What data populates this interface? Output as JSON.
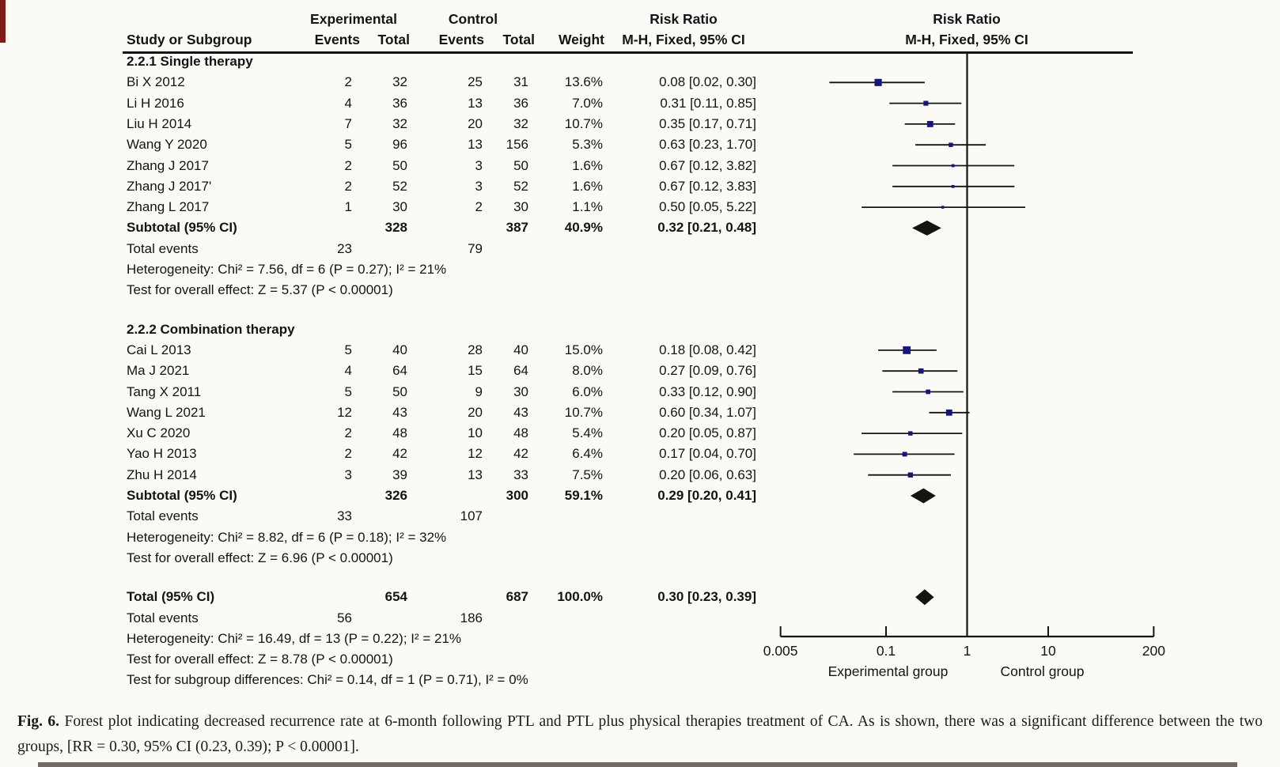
{
  "header": {
    "study_col": "Study or Subgroup",
    "experimental": "Experimental",
    "control": "Control",
    "events": "Events",
    "total": "Total",
    "weight": "Weight",
    "risk_ratio": "Risk Ratio",
    "method": "M-H, Fixed, 95% CI"
  },
  "colors": {
    "background": "#fbfaf6",
    "marker_blue": "#15157e",
    "line_black": "#141414",
    "artifact_red": "#7f1d14",
    "bottom_bar": "#5d4f49"
  },
  "caption": {
    "label": "Fig. 6.",
    "text": "Forest plot indicating decreased recurrence rate at 6-month following PTL and PTL plus physical therapies treatment of CA. As is shown, there was a significant difference between the two groups, [RR = 0.30, 95% CI (0.23, 0.39); P < 0.00001]."
  },
  "chart_data": {
    "type": "scatter",
    "variant": "forest-plot",
    "effect_measure": "Risk Ratio, M-H, Fixed, 95% CI",
    "x_scale": "log",
    "xlim": [
      0.005,
      200
    ],
    "axis": {
      "ticks": [
        "0.005",
        "0.1",
        "1",
        "10",
        "200"
      ],
      "tick_values": [
        0.005,
        0.1,
        1,
        10,
        200
      ],
      "left_group_label": "Experimental group",
      "right_group_label": "Control group"
    },
    "sections": [
      {
        "label": "2.2.1 Single therapy",
        "studies": [
          {
            "name": "Bi X 2012",
            "e_events": "2",
            "e_total": "32",
            "c_events": "25",
            "c_total": "31",
            "weight": "13.6%",
            "ci_text": "0.08 [0.02, 0.30]",
            "rr": 0.08,
            "lo": 0.02,
            "hi": 0.3
          },
          {
            "name": "Li H 2016",
            "e_events": "4",
            "e_total": "36",
            "c_events": "13",
            "c_total": "36",
            "weight": "7.0%",
            "ci_text": "0.31 [0.11, 0.85]",
            "rr": 0.31,
            "lo": 0.11,
            "hi": 0.85
          },
          {
            "name": "Liu H 2014",
            "e_events": "7",
            "e_total": "32",
            "c_events": "20",
            "c_total": "32",
            "weight": "10.7%",
            "ci_text": "0.35 [0.17, 0.71]",
            "rr": 0.35,
            "lo": 0.17,
            "hi": 0.71
          },
          {
            "name": "Wang Y 2020",
            "e_events": "5",
            "e_total": "96",
            "c_events": "13",
            "c_total": "156",
            "weight": "5.3%",
            "ci_text": "0.63 [0.23, 1.70]",
            "rr": 0.63,
            "lo": 0.23,
            "hi": 1.7
          },
          {
            "name": "Zhang J 2017",
            "e_events": "2",
            "e_total": "50",
            "c_events": "3",
            "c_total": "50",
            "weight": "1.6%",
            "ci_text": "0.67 [0.12, 3.82]",
            "rr": 0.67,
            "lo": 0.12,
            "hi": 3.82
          },
          {
            "name": "Zhang J 2017'",
            "e_events": "2",
            "e_total": "52",
            "c_events": "3",
            "c_total": "52",
            "weight": "1.6%",
            "ci_text": "0.67 [0.12, 3.83]",
            "rr": 0.67,
            "lo": 0.12,
            "hi": 3.83
          },
          {
            "name": "Zhang L 2017",
            "e_events": "1",
            "e_total": "30",
            "c_events": "2",
            "c_total": "30",
            "weight": "1.1%",
            "ci_text": "0.50 [0.05, 5.22]",
            "rr": 0.5,
            "lo": 0.05,
            "hi": 5.22
          }
        ],
        "subtotal": {
          "label": "Subtotal (95% CI)",
          "e_total": "328",
          "c_total": "387",
          "weight": "40.9%",
          "ci_text": "0.32 [0.21, 0.48]",
          "rr": 0.32,
          "lo": 0.21,
          "hi": 0.48
        },
        "total_events": {
          "label": "Total events",
          "experimental": "23",
          "control": "79"
        },
        "heterogeneity": "Heterogeneity: Chi² = 7.56, df = 6 (P = 0.27); I² = 21%",
        "overall_effect": "Test for overall effect: Z = 5.37 (P < 0.00001)"
      },
      {
        "label": "2.2.2 Combination therapy",
        "studies": [
          {
            "name": "Cai L 2013",
            "e_events": "5",
            "e_total": "40",
            "c_events": "28",
            "c_total": "40",
            "weight": "15.0%",
            "ci_text": "0.18 [0.08, 0.42]",
            "rr": 0.18,
            "lo": 0.08,
            "hi": 0.42
          },
          {
            "name": "Ma J 2021",
            "e_events": "4",
            "e_total": "64",
            "c_events": "15",
            "c_total": "64",
            "weight": "8.0%",
            "ci_text": "0.27 [0.09, 0.76]",
            "rr": 0.27,
            "lo": 0.09,
            "hi": 0.76
          },
          {
            "name": "Tang X 2011",
            "e_events": "5",
            "e_total": "50",
            "c_events": "9",
            "c_total": "30",
            "weight": "6.0%",
            "ci_text": "0.33 [0.12, 0.90]",
            "rr": 0.33,
            "lo": 0.12,
            "hi": 0.9
          },
          {
            "name": "Wang L 2021",
            "e_events": "12",
            "e_total": "43",
            "c_events": "20",
            "c_total": "43",
            "weight": "10.7%",
            "ci_text": "0.60 [0.34, 1.07]",
            "rr": 0.6,
            "lo": 0.34,
            "hi": 1.07
          },
          {
            "name": "Xu C 2020",
            "e_events": "2",
            "e_total": "48",
            "c_events": "10",
            "c_total": "48",
            "weight": "5.4%",
            "ci_text": "0.20 [0.05, 0.87]",
            "rr": 0.2,
            "lo": 0.05,
            "hi": 0.87
          },
          {
            "name": "Yao H 2013",
            "e_events": "2",
            "e_total": "42",
            "c_events": "12",
            "c_total": "42",
            "weight": "6.4%",
            "ci_text": "0.17 [0.04, 0.70]",
            "rr": 0.17,
            "lo": 0.04,
            "hi": 0.7
          },
          {
            "name": "Zhu H 2014",
            "e_events": "3",
            "e_total": "39",
            "c_events": "13",
            "c_total": "33",
            "weight": "7.5%",
            "ci_text": "0.20 [0.06, 0.63]",
            "rr": 0.2,
            "lo": 0.06,
            "hi": 0.63
          }
        ],
        "subtotal": {
          "label": "Subtotal (95% CI)",
          "e_total": "326",
          "c_total": "300",
          "weight": "59.1%",
          "ci_text": "0.29 [0.20, 0.41]",
          "rr": 0.29,
          "lo": 0.2,
          "hi": 0.41
        },
        "total_events": {
          "label": "Total events",
          "experimental": "33",
          "control": "107"
        },
        "heterogeneity": "Heterogeneity: Chi² = 8.82, df = 6 (P = 0.18); I² = 32%",
        "overall_effect": "Test for overall effect: Z = 6.96 (P < 0.00001)"
      }
    ],
    "overall": {
      "label": "Total (95% CI)",
      "e_total": "654",
      "c_total": "687",
      "weight": "100.0%",
      "ci_text": "0.30 [0.23, 0.39]",
      "rr": 0.3,
      "lo": 0.23,
      "hi": 0.39,
      "total_events": {
        "label": "Total events",
        "experimental": "56",
        "control": "186"
      },
      "heterogeneity": "Heterogeneity: Chi² = 16.49, df = 13 (P = 0.22); I² = 21%",
      "overall_effect": "Test for overall effect: Z = 8.78 (P < 0.00001)",
      "subgroup_differences": "Test for subgroup differences: Chi² = 0.14, df = 1 (P = 0.71), I² = 0%"
    }
  }
}
